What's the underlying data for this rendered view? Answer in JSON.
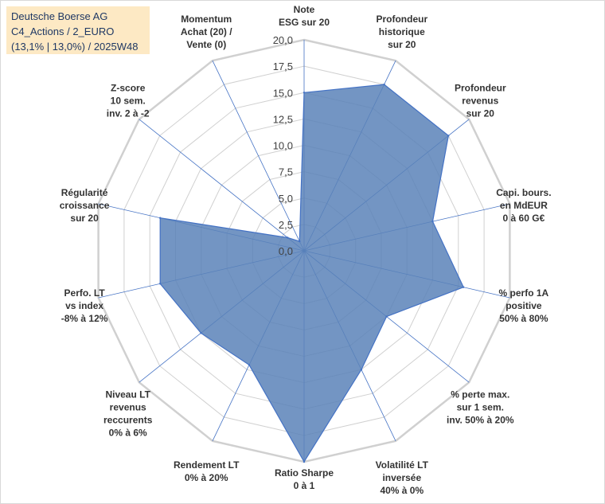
{
  "header": {
    "line1": "Deutsche Boerse AG",
    "line2": "C4_Actions / 2_EURO",
    "line3": "(13,1% | 13,0%) / 2025W48"
  },
  "colors": {
    "fill": "#5b82b8",
    "stroke": "#4472c4",
    "grid": "#d0d0d0",
    "spoke": "#4472c4",
    "title_bg": "#fde9c4"
  },
  "chart_data": {
    "type": "radar",
    "scale_min": 0,
    "scale_max": 20,
    "tick_step": 2.5,
    "tick_labels": [
      "0,0",
      "2,5",
      "5,0",
      "7,5",
      "10,0",
      "12,5",
      "15,0",
      "17,5",
      "20,0"
    ],
    "axes": [
      {
        "label": [
          "Note",
          "ESG sur 20"
        ],
        "value": 15.0
      },
      {
        "label": [
          "Profondeur",
          "historique",
          "sur 20"
        ],
        "value": 17.5
      },
      {
        "label": [
          "Profondeur",
          "revenus",
          "sur 20"
        ],
        "value": 17.5
      },
      {
        "label": [
          "Capi. bours.",
          "en MdEUR",
          "0 à 60 G€"
        ],
        "value": 12.5
      },
      {
        "label": [
          "% perfo 1A",
          "positive",
          "50% à 80%"
        ],
        "value": 15.5
      },
      {
        "label": [
          "% perte max.",
          "sur 1 sem.",
          "inv. 50% à 20%"
        ],
        "value": 10.0
      },
      {
        "label": [
          "Volatilité LT",
          "inversée",
          "40% à 0%"
        ],
        "value": 12.5
      },
      {
        "label": [
          "Ratio Sharpe",
          "0 à 1"
        ],
        "value": 20.0
      },
      {
        "label": [
          "Rendement LT",
          "0% à 20%"
        ],
        "value": 12.0
      },
      {
        "label": [
          "Niveau LT",
          "revenus",
          "reccurents",
          "0% à 6%"
        ],
        "value": 12.5
      },
      {
        "label": [
          "Perfo. LT",
          "vs index",
          "-8% à 12%"
        ],
        "value": 14.0
      },
      {
        "label": [
          "Régularité",
          "croissance",
          "sur 20"
        ],
        "value": 14.0
      },
      {
        "label": [
          "Z-score",
          "10 sem.",
          "inv. 2 à -2"
        ],
        "value": 2.0
      },
      {
        "label": [
          "Momentum",
          "Achat (20) /",
          "Vente (0)"
        ],
        "value": 1.0
      }
    ]
  }
}
